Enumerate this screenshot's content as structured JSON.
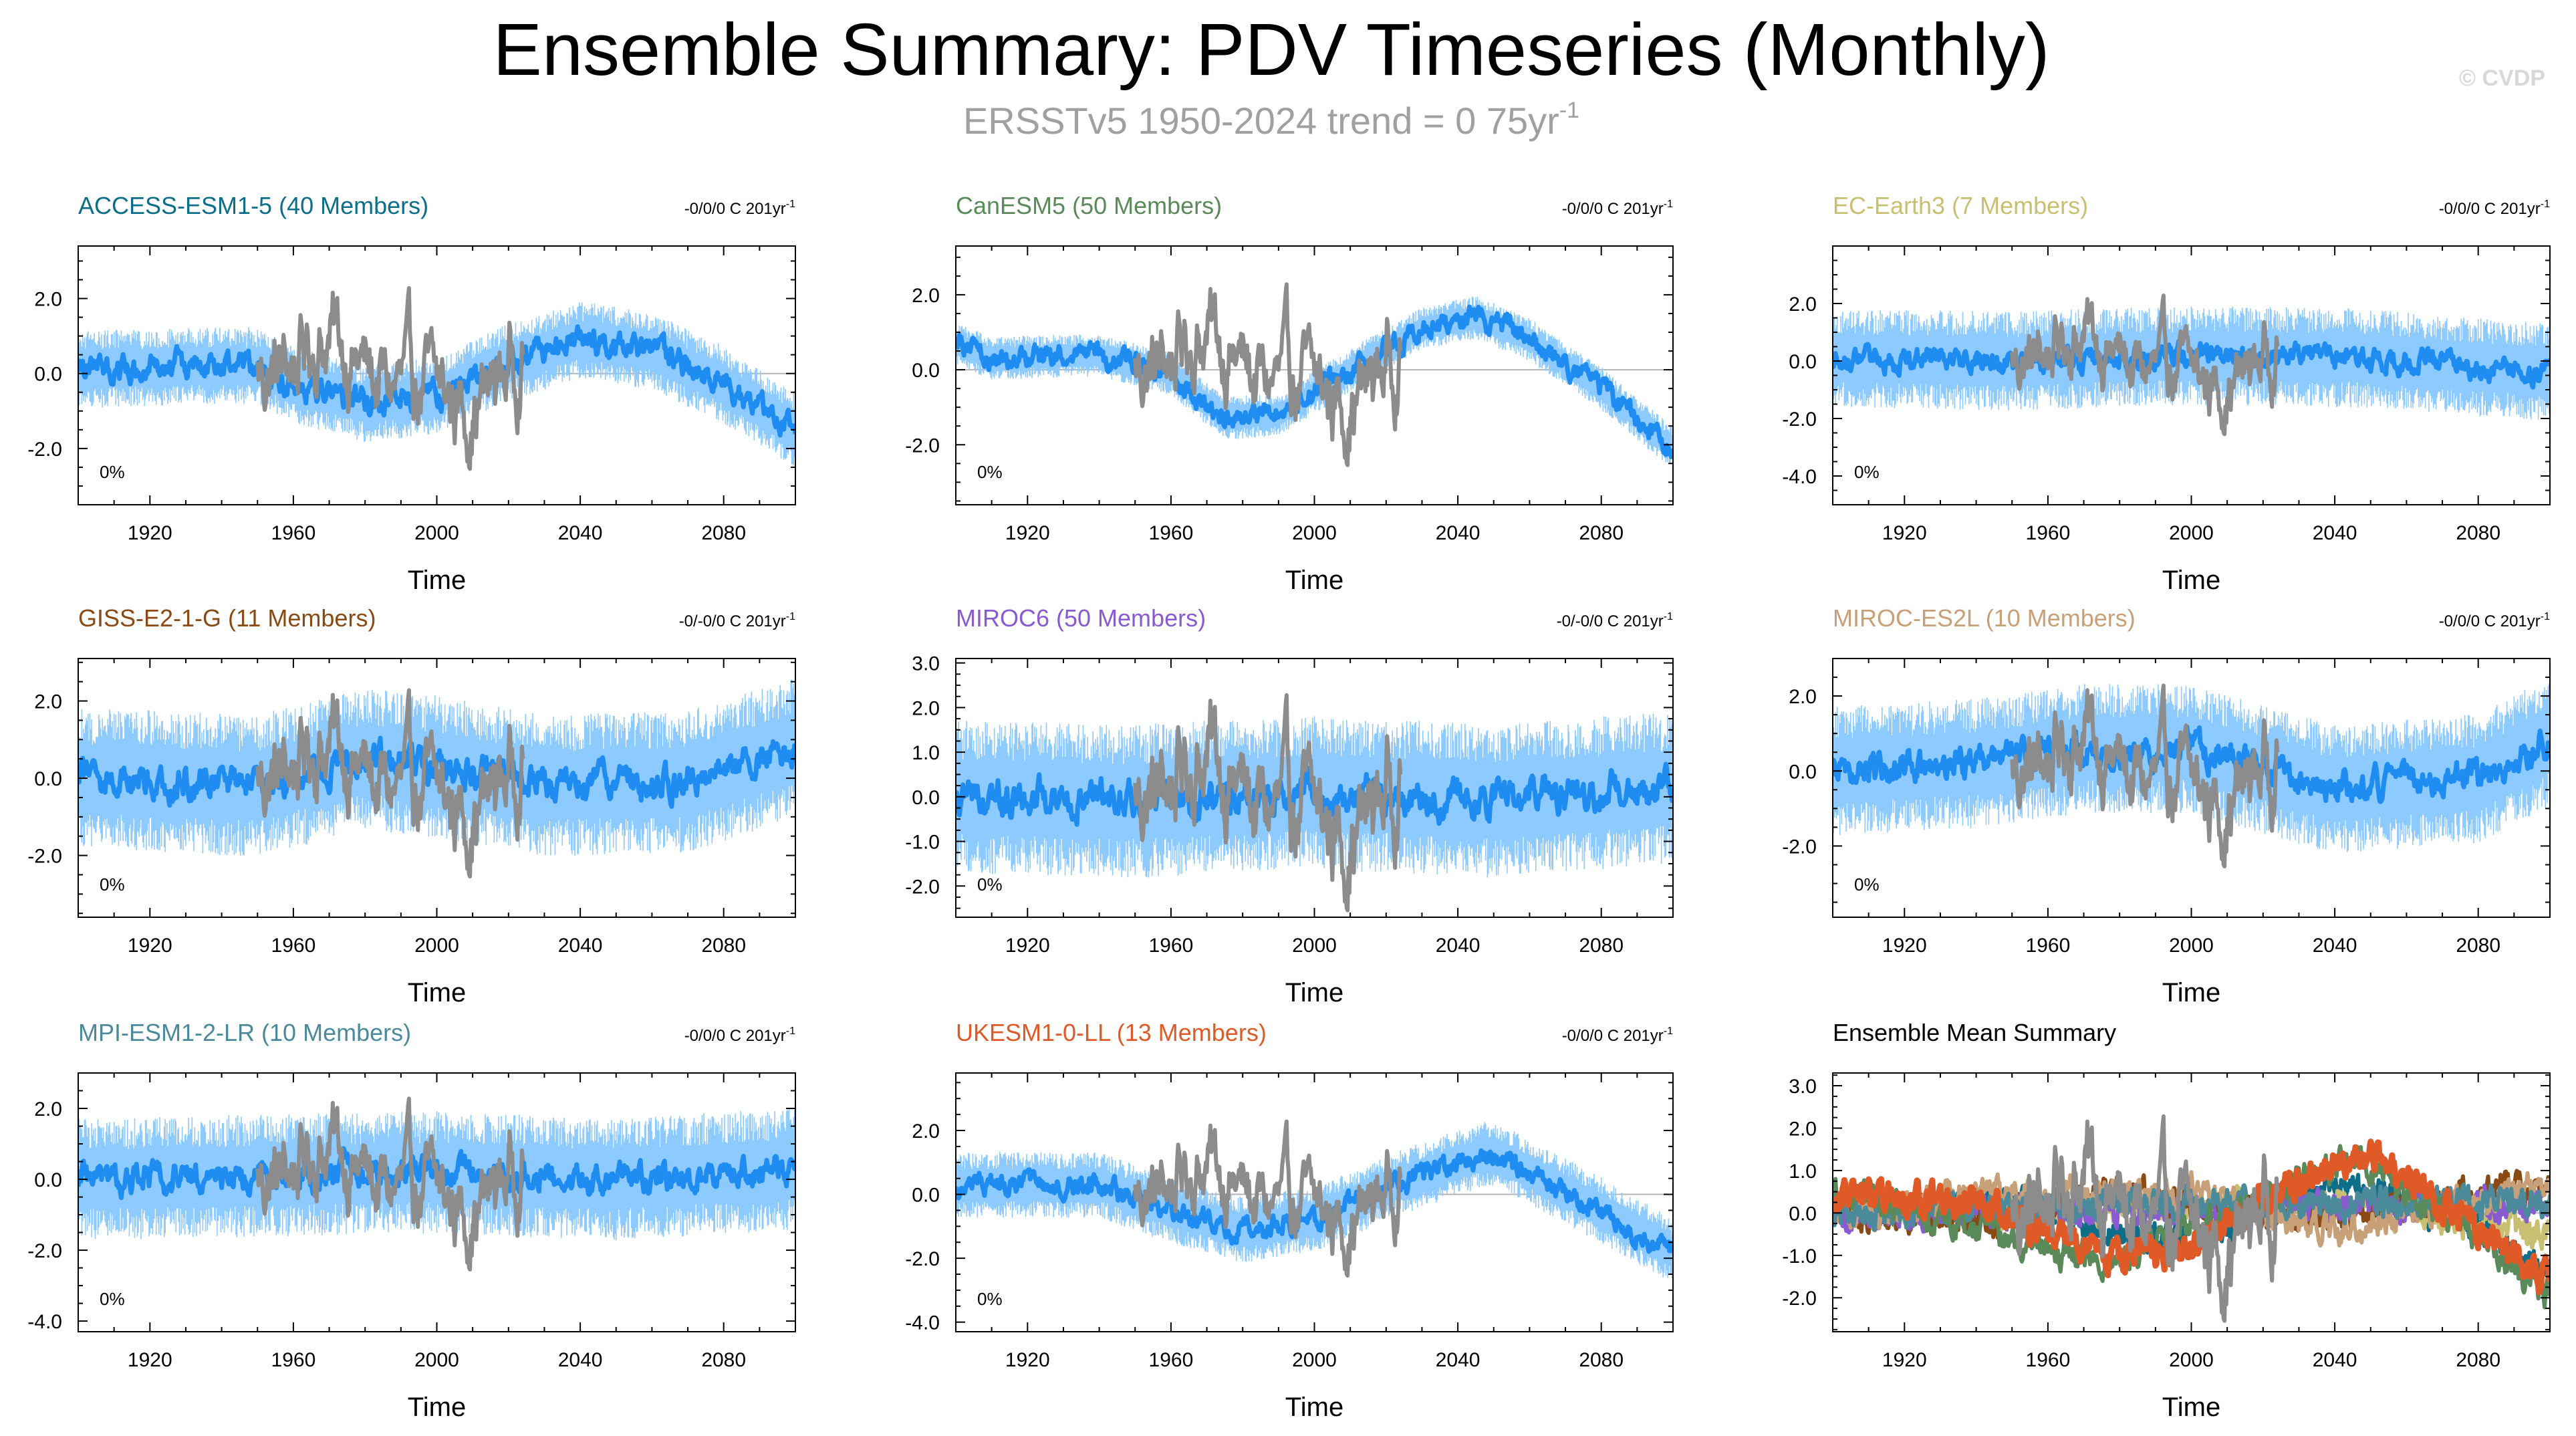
{
  "title": "Ensemble Summary: PDV Timeseries (Monthly)",
  "subtitle_main": "ERSSTv5 1950-2024 trend = 0 75yr",
  "subtitle_sup": "-1",
  "watermark": "© CVDP",
  "colors": {
    "observations": "#8c8c8c",
    "ensemble_mean": "#1e8cf0",
    "ensemble_spread": "#8ccaff",
    "zero_line": "#b4b4b4"
  },
  "chart_data": [
    {
      "type": "line",
      "title": "ACCESS-ESM1-5 (40 Members)",
      "title_color": "#0d6e8a",
      "trend_text": "-0/0/0 C 201yr",
      "trend_sup": "-1",
      "percent_label": "0%",
      "xlabel": "Time",
      "xlim": [
        1900,
        2100
      ],
      "xticks": [
        1920,
        1960,
        2000,
        2040,
        2080
      ],
      "ylim": [
        -3.5,
        3.4
      ],
      "yticks": [
        -2.0,
        0.0,
        2.0
      ],
      "ytick_labels": [
        "-2.0",
        "0.0",
        "2.0"
      ],
      "model_mean": {
        "x": [
          1900,
          1930,
          1950,
          1960,
          1980,
          2000,
          2020,
          2040,
          2060,
          2080,
          2100
        ],
        "y": [
          0.1,
          0.2,
          0.2,
          -0.3,
          -0.8,
          -0.6,
          0.3,
          0.9,
          0.6,
          -0.3,
          -1.5
        ]
      },
      "spread": 0.9,
      "obs_visible": true
    },
    {
      "type": "line",
      "title": "CanESM5 (50 Members)",
      "title_color": "#5a8a5a",
      "trend_text": "-0/0/0 C 201yr",
      "trend_sup": "-1",
      "percent_label": "0%",
      "xlabel": "Time",
      "xlim": [
        1900,
        2100
      ],
      "xticks": [
        1920,
        1960,
        2000,
        2040,
        2080
      ],
      "ylim": [
        -3.6,
        3.3
      ],
      "yticks": [
        -2.0,
        0.0,
        2.0
      ],
      "ytick_labels": [
        "-2.0",
        "0.0",
        "2.0"
      ],
      "model_mean": {
        "x": [
          1900,
          1910,
          1940,
          1960,
          1975,
          1990,
          2010,
          2030,
          2045,
          2060,
          2080,
          2100
        ],
        "y": [
          0.7,
          0.3,
          0.4,
          -0.1,
          -1.3,
          -1.2,
          0.0,
          1.1,
          1.4,
          0.8,
          -0.5,
          -2.1
        ]
      },
      "spread": 0.5,
      "obs_visible": true
    },
    {
      "type": "line",
      "title": "EC-Earth3 (7 Members)",
      "title_color": "#c8c070",
      "trend_text": "-0/0/0 C 201yr",
      "trend_sup": "-1",
      "percent_label": "0%",
      "xlabel": "Time",
      "xlim": [
        1900,
        2100
      ],
      "xticks": [
        1920,
        1960,
        2000,
        2040,
        2080
      ],
      "ylim": [
        -5.0,
        4.0
      ],
      "yticks": [
        -4.0,
        -2.0,
        0.0,
        2.0
      ],
      "ytick_labels": [
        "-4.0",
        "-2.0",
        "0.0",
        "2.0"
      ],
      "model_mean": {
        "x": [
          1900,
          1950,
          2000,
          2050,
          2100
        ],
        "y": [
          0.1,
          0.0,
          0.2,
          0.1,
          -0.4
        ]
      },
      "spread": 1.5,
      "obs_visible": true
    },
    {
      "type": "line",
      "title": "GISS-E2-1-G (11 Members)",
      "title_color": "#8a4a14",
      "trend_text": "-0/-0/0 C 201yr",
      "trend_sup": "-1",
      "percent_label": "0%",
      "xlabel": "Time",
      "xlim": [
        1900,
        2100
      ],
      "xticks": [
        1920,
        1960,
        2000,
        2040,
        2080
      ],
      "ylim": [
        -3.6,
        3.1
      ],
      "yticks": [
        -2.0,
        0.0,
        2.0
      ],
      "ytick_labels": [
        "-2.0",
        "0.0",
        "2.0"
      ],
      "model_mean": {
        "x": [
          1900,
          1950,
          1980,
          2000,
          2030,
          2070,
          2100
        ],
        "y": [
          0.0,
          -0.2,
          0.5,
          0.3,
          -0.2,
          -0.1,
          0.8
        ]
      },
      "spread": 1.6,
      "obs_visible": true
    },
    {
      "type": "line",
      "title": "MIROC6 (50 Members)",
      "title_color": "#8a5ad2",
      "trend_text": "-0/-0/0 C 201yr",
      "trend_sup": "-1",
      "percent_label": "0%",
      "xlabel": "Time",
      "xlim": [
        1900,
        2100
      ],
      "xticks": [
        1920,
        1960,
        2000,
        2040,
        2080
      ],
      "ylim": [
        -2.7,
        3.1
      ],
      "yticks": [
        -2.0,
        -1.0,
        0.0,
        1.0,
        2.0,
        3.0
      ],
      "ytick_labels": [
        "-2.0",
        "-1.0",
        "0.0",
        "1.0",
        "2.0",
        "3.0"
      ],
      "model_mean": {
        "x": [
          1900,
          1950,
          2000,
          2050,
          2100
        ],
        "y": [
          0.0,
          -0.1,
          0.1,
          -0.1,
          0.2
        ]
      },
      "spread": 1.5,
      "obs_visible": true
    },
    {
      "type": "line",
      "title": "MIROC-ES2L (10 Members)",
      "title_color": "#c8a078",
      "trend_text": "-0/0/0 C 201yr",
      "trend_sup": "-1",
      "percent_label": "0%",
      "xlabel": "Time",
      "xlim": [
        1900,
        2100
      ],
      "xticks": [
        1920,
        1960,
        2000,
        2040,
        2080
      ],
      "ylim": [
        -3.9,
        3.0
      ],
      "yticks": [
        -2.0,
        0.0,
        2.0
      ],
      "ytick_labels": [
        "-2.0",
        "0.0",
        "2.0"
      ],
      "model_mean": {
        "x": [
          1900,
          1940,
          1970,
          2000,
          2040,
          2080,
          2100
        ],
        "y": [
          0.0,
          0.2,
          0.6,
          0.6,
          -0.5,
          -0.2,
          0.8
        ]
      },
      "spread": 1.5,
      "obs_visible": true
    },
    {
      "type": "line",
      "title": "MPI-ESM1-2-LR (10 Members)",
      "title_color": "#4a8a9a",
      "trend_text": "-0/0/0 C 201yr",
      "trend_sup": "-1",
      "percent_label": "0%",
      "xlabel": "Time",
      "xlim": [
        1900,
        2100
      ],
      "xticks": [
        1920,
        1960,
        2000,
        2040,
        2080
      ],
      "ylim": [
        -4.3,
        3.0
      ],
      "yticks": [
        -4.0,
        -2.0,
        0.0,
        2.0
      ],
      "ytick_labels": [
        "-4.0",
        "-2.0",
        "0.0",
        "2.0"
      ],
      "model_mean": {
        "x": [
          1900,
          1950,
          2000,
          2050,
          2100
        ],
        "y": [
          0.0,
          0.1,
          0.2,
          0.0,
          0.3
        ]
      },
      "spread": 1.5,
      "obs_visible": true
    },
    {
      "type": "line",
      "title": "UKESM1-0-LL (13 Members)",
      "title_color": "#e05a28",
      "trend_text": "-0/0/0 C 201yr",
      "trend_sup": "-1",
      "percent_label": "0%",
      "xlabel": "Time",
      "xlim": [
        1900,
        2100
      ],
      "xticks": [
        1920,
        1960,
        2000,
        2040,
        2080
      ],
      "ylim": [
        -4.3,
        3.8
      ],
      "yticks": [
        -4.0,
        -2.0,
        0.0,
        2.0
      ],
      "ytick_labels": [
        "-4.0",
        "-2.0",
        "0.0",
        "2.0"
      ],
      "model_mean": {
        "x": [
          1900,
          1940,
          1960,
          1980,
          2000,
          2020,
          2040,
          2050,
          2060,
          2080,
          2100
        ],
        "y": [
          0.3,
          0.3,
          -0.5,
          -1.1,
          -0.8,
          0.2,
          1.0,
          1.3,
          0.7,
          -0.5,
          -1.8
        ]
      },
      "spread": 0.9,
      "obs_visible": true
    },
    {
      "type": "line",
      "title": "Ensemble Mean Summary",
      "title_color": "#000000",
      "trend_text": "",
      "trend_sup": "",
      "percent_label": "",
      "xlabel": "Time",
      "xlim": [
        1900,
        2100
      ],
      "xticks": [
        1920,
        1960,
        2000,
        2040,
        2080
      ],
      "ylim": [
        -2.8,
        3.3
      ],
      "yticks": [
        -2.0,
        -1.0,
        0.0,
        1.0,
        2.0,
        3.0
      ],
      "ytick_labels": [
        "-2.0",
        "-1.0",
        "0.0",
        "1.0",
        "2.0",
        "3.0"
      ],
      "obs_visible": true,
      "series": [
        {
          "name": "ACCESS-ESM1-5",
          "color": "#0d6e8a",
          "x": [
            1900,
            1950,
            1980,
            2000,
            2040,
            2080,
            2100
          ],
          "y": [
            0.1,
            0.2,
            -0.6,
            -0.6,
            0.8,
            -0.3,
            -1.5
          ]
        },
        {
          "name": "EC-Earth3",
          "color": "#c8c070",
          "x": [
            1900,
            1950,
            2000,
            2050,
            2100
          ],
          "y": [
            0.1,
            0.0,
            0.2,
            0.1,
            -0.5
          ]
        },
        {
          "name": "GISS-E2-1-G",
          "color": "#8a4a14",
          "x": [
            1900,
            1950,
            1980,
            2030,
            2100
          ],
          "y": [
            0.0,
            -0.2,
            0.5,
            -0.2,
            0.7
          ]
        },
        {
          "name": "MIROC6",
          "color": "#8a5ad2",
          "x": [
            1900,
            2000,
            2100
          ],
          "y": [
            0.0,
            0.1,
            0.2
          ]
        },
        {
          "name": "MIROC-ES2L",
          "color": "#c8a078",
          "x": [
            1900,
            1970,
            2000,
            2040,
            2100
          ],
          "y": [
            0.0,
            0.6,
            0.5,
            -0.4,
            0.7
          ]
        },
        {
          "name": "MPI-ESM1-2-LR",
          "color": "#4a8a9a",
          "x": [
            1900,
            2000,
            2100
          ],
          "y": [
            0.0,
            0.2,
            0.3
          ]
        },
        {
          "name": "CanESM5",
          "color": "#5a8a5a",
          "x": [
            1900,
            1975,
            2010,
            2045,
            2080,
            2100
          ],
          "y": [
            0.6,
            -1.2,
            0.0,
            1.3,
            -0.5,
            -2.0
          ]
        },
        {
          "name": "UKESM1-0-LL",
          "color": "#e05a28",
          "x": [
            1900,
            1940,
            1980,
            2000,
            2020,
            2050,
            2080,
            2100
          ],
          "y": [
            0.3,
            0.3,
            -1.1,
            -0.8,
            0.3,
            1.4,
            -0.4,
            -1.6
          ]
        }
      ]
    }
  ]
}
